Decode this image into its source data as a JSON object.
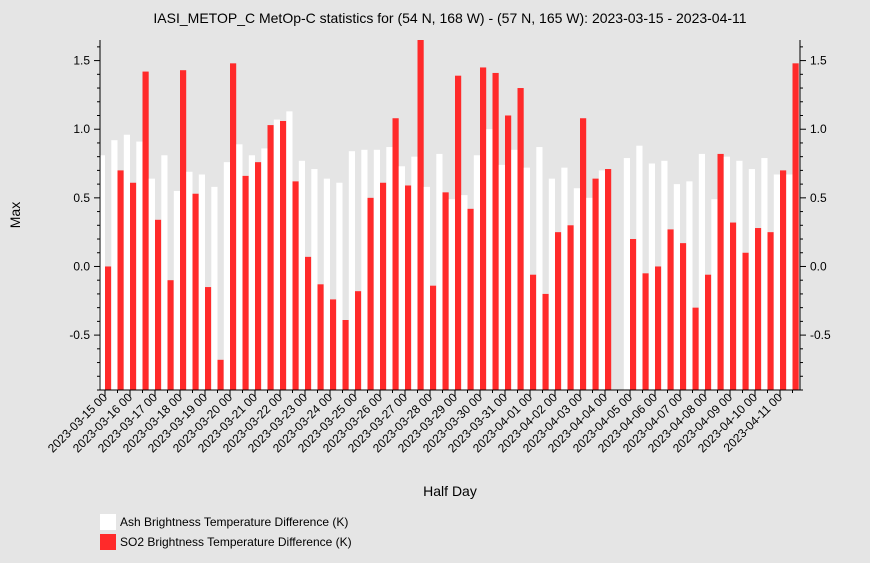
{
  "chart_data": {
    "type": "bar",
    "title": "IASI_METOP_C MetOp-C statistics for (54 N, 168 W) - (57 N, 165 W): 2023-03-15 - 2023-04-11",
    "xlabel": "Half Day",
    "ylabel": "Max",
    "ylim": [
      -0.9,
      1.65
    ],
    "yticks": [
      -0.5,
      0.0,
      0.5,
      1.0,
      1.5
    ],
    "ytick_labels": [
      "-0.5",
      "0.0",
      "0.5",
      "1.0",
      "1.5"
    ],
    "grid": false,
    "legend_position": "bottom-left",
    "categories": [
      "2023-03-15 00",
      "2023-03-15 12",
      "2023-03-16 00",
      "2023-03-16 12",
      "2023-03-17 00",
      "2023-03-17 12",
      "2023-03-18 00",
      "2023-03-18 12",
      "2023-03-19 00",
      "2023-03-19 12",
      "2023-03-20 00",
      "2023-03-20 12",
      "2023-03-21 00",
      "2023-03-21 12",
      "2023-03-22 00",
      "2023-03-22 12",
      "2023-03-23 00",
      "2023-03-23 12",
      "2023-03-24 00",
      "2023-03-24 12",
      "2023-03-25 00",
      "2023-03-25 12",
      "2023-03-26 00",
      "2023-03-26 12",
      "2023-03-27 00",
      "2023-03-27 12",
      "2023-03-28 00",
      "2023-03-28 12",
      "2023-03-29 00",
      "2023-03-29 12",
      "2023-03-30 00",
      "2023-03-30 12",
      "2023-03-31 00",
      "2023-03-31 12",
      "2023-04-01 00",
      "2023-04-01 12",
      "2023-04-02 00",
      "2023-04-02 12",
      "2023-04-03 00",
      "2023-04-03 12",
      "2023-04-04 00",
      "2023-04-04 12",
      "2023-04-05 00",
      "2023-04-05 12",
      "2023-04-06 00",
      "2023-04-06 12",
      "2023-04-07 00",
      "2023-04-07 12",
      "2023-04-08 00",
      "2023-04-08 12",
      "2023-04-09 00",
      "2023-04-09 12",
      "2023-04-10 00",
      "2023-04-10 12",
      "2023-04-11 00",
      "2023-04-11 12"
    ],
    "xtick_labels": [
      "2023-03-15 00",
      "2023-03-16 00",
      "2023-03-17 00",
      "2023-03-18 00",
      "2023-03-19 00",
      "2023-03-20 00",
      "2023-03-21 00",
      "2023-03-22 00",
      "2023-03-23 00",
      "2023-03-24 00",
      "2023-03-25 00",
      "2023-03-26 00",
      "2023-03-27 00",
      "2023-03-28 00",
      "2023-03-29 00",
      "2023-03-30 00",
      "2023-03-31 00",
      "2023-04-01 00",
      "2023-04-02 00",
      "2023-04-03 00",
      "2023-04-04 00",
      "2023-04-05 00",
      "2023-04-06 00",
      "2023-04-07 00",
      "2023-04-08 00",
      "2023-04-09 00",
      "2023-04-10 00",
      "2023-04-11 00"
    ],
    "series": [
      {
        "name": "Ash Brightness Temperature Difference (K)",
        "color": "#ffffff",
        "values": [
          0.81,
          0.92,
          0.96,
          0.91,
          0.64,
          0.81,
          0.55,
          0.69,
          0.67,
          0.58,
          0.76,
          0.89,
          0.81,
          0.86,
          1.07,
          1.13,
          0.77,
          0.71,
          0.64,
          0.61,
          0.84,
          0.85,
          0.85,
          0.87,
          0.73,
          0.8,
          0.58,
          0.82,
          0.49,
          0.52,
          0.81,
          1.0,
          0.74,
          0.85,
          0.72,
          0.87,
          0.64,
          0.72,
          0.57,
          0.5,
          0.7,
          null,
          0.79,
          0.88,
          0.75,
          0.77,
          0.6,
          0.62,
          0.82,
          0.49,
          0.8,
          0.77,
          0.71,
          0.79,
          0.67,
          0.67
        ]
      },
      {
        "name": "SO2 Brightness Temperature Difference (K)",
        "color": "#ff2a2a",
        "values": [
          0.0,
          0.7,
          0.61,
          1.42,
          0.34,
          -0.1,
          1.43,
          0.53,
          -0.15,
          -0.68,
          1.48,
          0.66,
          0.76,
          1.03,
          1.06,
          0.62,
          0.07,
          -0.13,
          -0.24,
          -0.39,
          -0.18,
          0.5,
          0.61,
          1.08,
          0.59,
          1.65,
          -0.14,
          0.54,
          1.39,
          0.42,
          1.45,
          1.41,
          1.1,
          1.3,
          -0.06,
          -0.2,
          0.25,
          0.3,
          1.08,
          0.64,
          0.71,
          null,
          0.2,
          -0.05,
          0.0,
          0.27,
          0.17,
          -0.3,
          -0.06,
          0.82,
          0.32,
          0.1,
          0.28,
          0.25,
          0.7,
          1.48
        ]
      }
    ]
  }
}
